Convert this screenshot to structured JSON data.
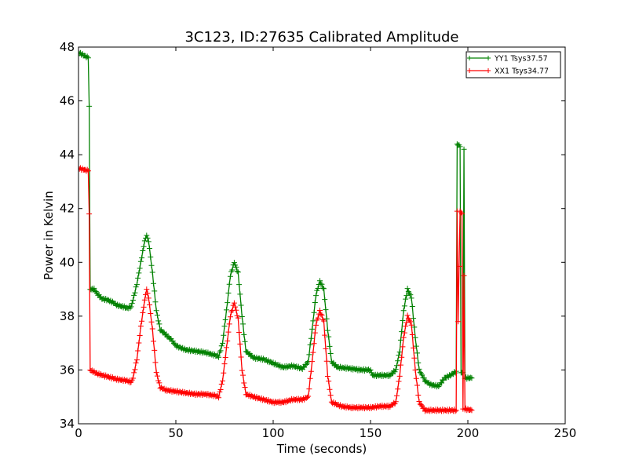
{
  "chart_data": {
    "type": "line",
    "title": "3C123, ID:27635 Calibrated Amplitude",
    "xlabel": "Time (seconds)",
    "ylabel": "Power in Kelvin",
    "xlim": [
      0,
      250
    ],
    "ylim": [
      34,
      48
    ],
    "xticks": [
      0,
      50,
      100,
      150,
      200,
      250
    ],
    "yticks": [
      34,
      36,
      38,
      40,
      42,
      44,
      46,
      48
    ],
    "grid": false,
    "legend_position": "top-right",
    "marker": "+",
    "series": [
      {
        "name": "YY1 Tsys37.57",
        "color": "#008000",
        "points": [
          [
            0,
            47.8
          ],
          [
            5,
            47.6
          ],
          [
            5.5,
            45.8
          ],
          [
            6,
            39.0
          ],
          [
            8,
            39.0
          ],
          [
            10,
            38.8
          ],
          [
            12,
            38.65
          ],
          [
            15,
            38.6
          ],
          [
            18,
            38.5
          ],
          [
            20,
            38.4
          ],
          [
            23,
            38.35
          ],
          [
            25,
            38.3
          ],
          [
            27,
            38.35
          ],
          [
            28,
            38.6
          ],
          [
            30,
            39.2
          ],
          [
            32,
            40.0
          ],
          [
            34,
            40.8
          ],
          [
            35,
            41.0
          ],
          [
            36,
            40.8
          ],
          [
            38,
            39.6
          ],
          [
            40,
            38.2
          ],
          [
            42,
            37.5
          ],
          [
            45,
            37.3
          ],
          [
            48,
            37.1
          ],
          [
            50,
            36.9
          ],
          [
            55,
            36.75
          ],
          [
            60,
            36.7
          ],
          [
            65,
            36.65
          ],
          [
            70,
            36.55
          ],
          [
            72,
            36.5
          ],
          [
            74,
            37.0
          ],
          [
            76,
            38.2
          ],
          [
            78,
            39.5
          ],
          [
            80,
            40.0
          ],
          [
            82,
            39.6
          ],
          [
            84,
            38.0
          ],
          [
            86,
            36.7
          ],
          [
            90,
            36.45
          ],
          [
            95,
            36.4
          ],
          [
            100,
            36.25
          ],
          [
            105,
            36.1
          ],
          [
            110,
            36.15
          ],
          [
            115,
            36.05
          ],
          [
            118,
            36.3
          ],
          [
            120,
            37.5
          ],
          [
            122,
            38.8
          ],
          [
            124,
            39.3
          ],
          [
            126,
            39.0
          ],
          [
            128,
            37.5
          ],
          [
            130,
            36.3
          ],
          [
            133,
            36.1
          ],
          [
            140,
            36.05
          ],
          [
            145,
            36.0
          ],
          [
            150,
            36.0
          ],
          [
            151,
            35.8
          ],
          [
            155,
            35.8
          ],
          [
            160,
            35.8
          ],
          [
            163,
            36.0
          ],
          [
            165,
            36.7
          ],
          [
            167,
            38.2
          ],
          [
            169,
            39.0
          ],
          [
            171,
            38.7
          ],
          [
            173,
            37.2
          ],
          [
            175,
            36.0
          ],
          [
            178,
            35.6
          ],
          [
            181,
            35.45
          ],
          [
            185,
            35.4
          ],
          [
            188,
            35.7
          ],
          [
            191,
            35.8
          ],
          [
            194,
            35.95
          ],
          [
            194.5,
            44.4
          ],
          [
            196,
            44.3
          ],
          [
            196.5,
            35.9
          ],
          [
            197.5,
            35.9
          ],
          [
            198,
            44.2
          ],
          [
            198.5,
            35.7
          ],
          [
            202,
            35.7
          ]
        ]
      },
      {
        "name": "XX1 Tsys34.77",
        "color": "#ff0000",
        "points": [
          [
            0,
            43.5
          ],
          [
            5,
            43.4
          ],
          [
            5.5,
            41.8
          ],
          [
            6,
            36.0
          ],
          [
            10,
            35.85
          ],
          [
            15,
            35.75
          ],
          [
            20,
            35.65
          ],
          [
            25,
            35.6
          ],
          [
            27,
            35.55
          ],
          [
            28,
            35.7
          ],
          [
            30,
            36.4
          ],
          [
            32,
            37.6
          ],
          [
            34,
            38.6
          ],
          [
            35,
            39.0
          ],
          [
            36,
            38.7
          ],
          [
            38,
            37.5
          ],
          [
            40,
            35.9
          ],
          [
            42,
            35.35
          ],
          [
            45,
            35.25
          ],
          [
            50,
            35.2
          ],
          [
            55,
            35.15
          ],
          [
            60,
            35.1
          ],
          [
            65,
            35.1
          ],
          [
            70,
            35.05
          ],
          [
            72,
            35.0
          ],
          [
            74,
            35.6
          ],
          [
            76,
            36.8
          ],
          [
            78,
            38.0
          ],
          [
            80,
            38.5
          ],
          [
            82,
            37.9
          ],
          [
            84,
            36.0
          ],
          [
            86,
            35.1
          ],
          [
            90,
            35.0
          ],
          [
            95,
            34.9
          ],
          [
            100,
            34.8
          ],
          [
            105,
            34.8
          ],
          [
            110,
            34.9
          ],
          [
            115,
            34.9
          ],
          [
            118,
            35.0
          ],
          [
            120,
            36.3
          ],
          [
            122,
            37.7
          ],
          [
            124,
            38.2
          ],
          [
            126,
            37.8
          ],
          [
            128,
            35.8
          ],
          [
            130,
            34.8
          ],
          [
            135,
            34.65
          ],
          [
            140,
            34.6
          ],
          [
            145,
            34.6
          ],
          [
            150,
            34.6
          ],
          [
            155,
            34.65
          ],
          [
            160,
            34.65
          ],
          [
            163,
            34.8
          ],
          [
            165,
            35.8
          ],
          [
            167,
            37.2
          ],
          [
            169,
            38.0
          ],
          [
            171,
            37.7
          ],
          [
            173,
            36.0
          ],
          [
            175,
            34.8
          ],
          [
            178,
            34.5
          ],
          [
            185,
            34.5
          ],
          [
            190,
            34.5
          ],
          [
            194,
            34.5
          ],
          [
            194.5,
            41.9
          ],
          [
            195,
            37.8
          ],
          [
            196,
            41.9
          ],
          [
            197,
            41.8
          ],
          [
            197.5,
            34.55
          ],
          [
            198,
            39.5
          ],
          [
            198.5,
            34.55
          ],
          [
            202,
            34.5
          ]
        ]
      }
    ]
  }
}
